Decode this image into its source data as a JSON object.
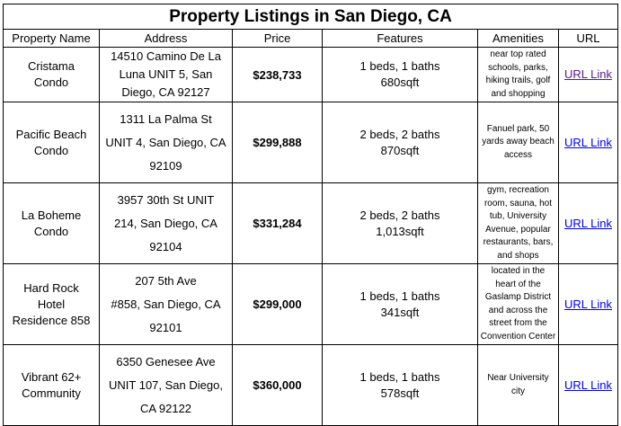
{
  "title": "Property Listings in San Diego, CA",
  "columns": [
    "Property Name",
    "Address",
    "Price",
    "Features",
    "Amenities",
    "URL"
  ],
  "rows": [
    {
      "name": [
        "Cristama",
        "Condo"
      ],
      "address": [
        "14510 Camino De La",
        "Luna UNIT 5, San",
        "Diego, CA 92127"
      ],
      "price": "$238,733",
      "features": [
        "1 beds, 1 baths",
        "680sqft"
      ],
      "amenities": [
        "near top rated",
        "schools, parks,",
        "hiking trails, golf",
        "and shopping"
      ],
      "url": "URL Link",
      "url_visited": true
    },
    {
      "name": [
        "Pacific Beach",
        "Condo"
      ],
      "address": [
        "1311 La Palma St",
        "UNIT 4, San Diego, CA",
        "92109"
      ],
      "price": "$299,888",
      "features": [
        "2 beds, 2 baths",
        "870sqft"
      ],
      "amenities": [
        "Fanuel park, 50",
        "yards away beach",
        "access"
      ],
      "url": "URL Link",
      "url_visited": false
    },
    {
      "name": [
        "La Boheme",
        "Condo"
      ],
      "address": [
        "3957 30th St UNIT",
        "214, San Diego, CA",
        "92104"
      ],
      "price": "$331,284",
      "features": [
        "2 beds, 2 baths",
        "1,013sqft"
      ],
      "amenities": [
        "gym, recreation",
        "room, sauna, hot",
        "tub, University",
        "Avenue, popular",
        "restaurants, bars,",
        "and shops"
      ],
      "url": "URL Link",
      "url_visited": false
    },
    {
      "name": [
        "Hard Rock",
        "Hotel",
        "Residence 858"
      ],
      "address": [
        "207 5th Ave",
        "#858, San Diego, CA",
        "92101"
      ],
      "price": "$299,000",
      "features": [
        "1 beds, 1 baths",
        "341sqft"
      ],
      "amenities": [
        "located in the",
        "heart of the",
        "Gaslamp District",
        "and across the",
        "street from the",
        "Convention Center"
      ],
      "url": "URL Link",
      "url_visited": false
    },
    {
      "name": [
        "Vibrant 62+",
        "Community"
      ],
      "address": [
        "6350 Genesee Ave",
        "UNIT 107, San Diego,",
        "CA 92122"
      ],
      "price": "$360,000",
      "features": [
        "1 beds, 1 baths",
        "578sqft"
      ],
      "amenities": [
        "Near University",
        "city"
      ],
      "url": "URL Link",
      "url_visited": false
    }
  ]
}
